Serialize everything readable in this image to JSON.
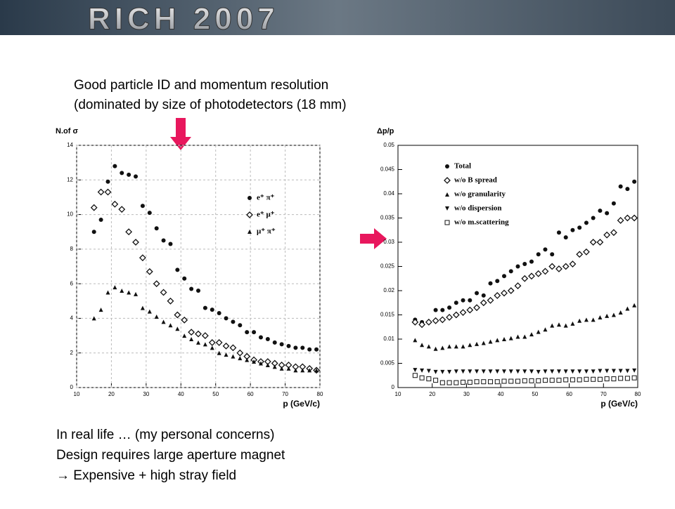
{
  "header": {
    "title": "RICH 2007"
  },
  "intro": [
    "Good particle ID and momentum resolution",
    "(dominated by size of photodetectors (18 mm)"
  ],
  "notes": [
    "In real life … (my personal concerns)",
    "Design requires large aperture magnet",
    "→ Expensive + high stray field"
  ],
  "chart_data": [
    {
      "type": "scatter",
      "ylabel": "N.of σ",
      "xlabel": "p (GeV/c)",
      "xlim": [
        10,
        80
      ],
      "xticks": [
        10,
        20,
        30,
        40,
        50,
        60,
        70,
        80
      ],
      "ylim": [
        0,
        14
      ],
      "yticks": [
        0,
        2,
        4,
        6,
        8,
        10,
        12,
        14
      ],
      "grid": true,
      "legend": "upper-right",
      "x": [
        15,
        17,
        19,
        21,
        23,
        25,
        27,
        29,
        31,
        33,
        35,
        37,
        39,
        41,
        43,
        45,
        47,
        49,
        51,
        53,
        55,
        57,
        59,
        61,
        63,
        65,
        67,
        69,
        71,
        73,
        75,
        77,
        79
      ],
      "series": [
        {
          "name": "e⁺ π⁺",
          "color": "#111111",
          "marker": "filled-circle",
          "values": [
            9.0,
            9.7,
            11.9,
            12.8,
            12.4,
            12.3,
            12.2,
            10.5,
            10.1,
            9.2,
            8.5,
            8.3,
            6.8,
            6.3,
            5.7,
            5.6,
            4.6,
            4.5,
            4.3,
            4.0,
            3.8,
            3.6,
            3.2,
            3.2,
            2.9,
            2.8,
            2.6,
            2.5,
            2.4,
            2.3,
            2.3,
            2.2,
            2.2
          ]
        },
        {
          "name": "e⁺ μ⁺",
          "color": "#111111",
          "marker": "open-diamond",
          "values": [
            10.4,
            11.3,
            11.3,
            10.6,
            10.3,
            9.0,
            8.4,
            7.5,
            6.7,
            6.0,
            5.5,
            5.0,
            4.2,
            3.9,
            3.2,
            3.1,
            3.0,
            2.6,
            2.6,
            2.4,
            2.3,
            2.0,
            1.8,
            1.6,
            1.5,
            1.5,
            1.4,
            1.3,
            1.3,
            1.2,
            1.2,
            1.1,
            1.0
          ]
        },
        {
          "name": "μ⁺ π⁺",
          "color": "#111111",
          "marker": "triangle",
          "values": [
            4.0,
            4.5,
            5.5,
            5.8,
            5.6,
            5.5,
            5.4,
            4.6,
            4.4,
            4.1,
            3.8,
            3.6,
            3.4,
            3.0,
            2.8,
            2.6,
            2.5,
            2.3,
            2.0,
            1.9,
            1.8,
            1.7,
            1.6,
            1.5,
            1.4,
            1.3,
            1.2,
            1.1,
            1.1,
            1.0,
            1.0,
            1.0,
            1.0
          ]
        }
      ]
    },
    {
      "type": "scatter",
      "ylabel": "Δp/p",
      "xlabel": "p (GeV/c)",
      "xlim": [
        10,
        80
      ],
      "xticks": [
        10,
        20,
        30,
        40,
        50,
        60,
        70,
        80
      ],
      "ylim": [
        0,
        0.05
      ],
      "yticks": [
        0,
        0.005,
        0.01,
        0.015,
        0.02,
        0.025,
        0.03,
        0.035,
        0.04,
        0.045,
        0.05
      ],
      "grid": false,
      "legend": "upper-left",
      "x": [
        15,
        17,
        19,
        21,
        23,
        25,
        27,
        29,
        31,
        33,
        35,
        37,
        39,
        41,
        43,
        45,
        47,
        49,
        51,
        53,
        55,
        57,
        59,
        61,
        63,
        65,
        67,
        69,
        71,
        73,
        75,
        77,
        79
      ],
      "series": [
        {
          "name": "Total",
          "color": "#111111",
          "marker": "filled-circle",
          "values": [
            0.014,
            0.0135,
            0.0135,
            0.016,
            0.016,
            0.0165,
            0.0175,
            0.018,
            0.018,
            0.0195,
            0.019,
            0.0215,
            0.022,
            0.023,
            0.024,
            0.025,
            0.0255,
            0.026,
            0.0275,
            0.0285,
            0.0275,
            0.032,
            0.031,
            0.0325,
            0.033,
            0.034,
            0.035,
            0.0365,
            0.036,
            0.038,
            0.0415,
            0.041,
            0.0425
          ]
        },
        {
          "name": "w/o B spread",
          "color": "#111111",
          "marker": "open-diamond",
          "values": [
            0.0135,
            0.013,
            0.0135,
            0.0138,
            0.014,
            0.0145,
            0.015,
            0.0155,
            0.016,
            0.0165,
            0.0175,
            0.018,
            0.019,
            0.0195,
            0.02,
            0.021,
            0.0225,
            0.023,
            0.0235,
            0.024,
            0.025,
            0.0245,
            0.025,
            0.0255,
            0.0275,
            0.028,
            0.03,
            0.03,
            0.0315,
            0.032,
            0.0345,
            0.035,
            0.035
          ]
        },
        {
          "name": "w/o granularity",
          "color": "#111111",
          "marker": "triangle",
          "values": [
            0.0098,
            0.0088,
            0.0085,
            0.008,
            0.0082,
            0.0085,
            0.0085,
            0.0085,
            0.0088,
            0.009,
            0.0092,
            0.0095,
            0.0098,
            0.01,
            0.0102,
            0.0105,
            0.0105,
            0.011,
            0.0115,
            0.012,
            0.0128,
            0.013,
            0.0128,
            0.0132,
            0.0138,
            0.014,
            0.014,
            0.0145,
            0.0148,
            0.015,
            0.0155,
            0.0163,
            0.017
          ]
        },
        {
          "name": "w/o dispersion",
          "color": "#111111",
          "marker": "triangle-down",
          "values": [
            0.0036,
            0.0035,
            0.0034,
            0.0032,
            0.0032,
            0.0032,
            0.0033,
            0.0033,
            0.0033,
            0.0033,
            0.0033,
            0.0033,
            0.0033,
            0.0033,
            0.0033,
            0.0033,
            0.0033,
            0.0033,
            0.0032,
            0.0033,
            0.0033,
            0.0033,
            0.0033,
            0.0033,
            0.0033,
            0.0033,
            0.0033,
            0.0034,
            0.0034,
            0.0034,
            0.0034,
            0.0034,
            0.0035
          ]
        },
        {
          "name": "w/o m.scattering",
          "color": "#111111",
          "marker": "open-square",
          "values": [
            0.0025,
            0.002,
            0.0018,
            0.0015,
            0.001,
            0.001,
            0.001,
            0.0011,
            0.0011,
            0.0012,
            0.0012,
            0.0012,
            0.0012,
            0.0013,
            0.0013,
            0.0013,
            0.0014,
            0.0014,
            0.0014,
            0.0015,
            0.0015,
            0.0015,
            0.0016,
            0.0016,
            0.0016,
            0.0017,
            0.0017,
            0.0017,
            0.0018,
            0.0018,
            0.0019,
            0.0019,
            0.002
          ]
        }
      ]
    }
  ]
}
